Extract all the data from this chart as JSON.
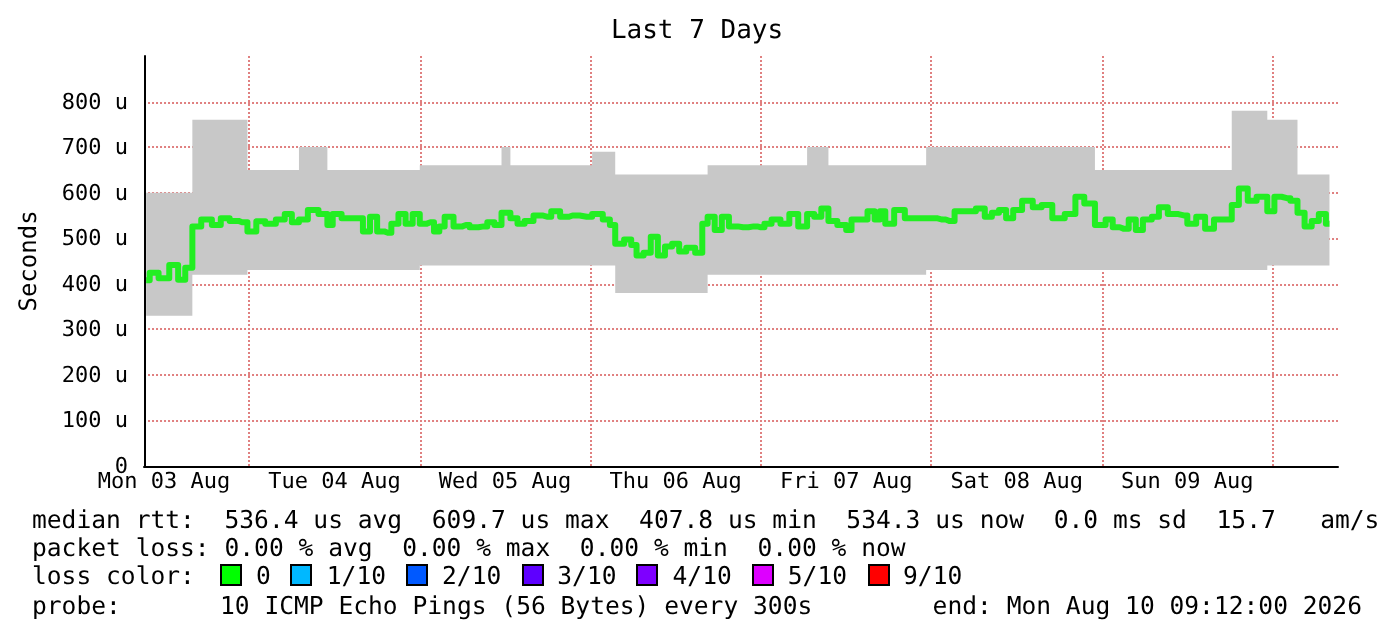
{
  "chart_data": {
    "type": "step",
    "title": "Last 7 Days",
    "ylabel": "Seconds",
    "xlim": [
      "2026-08-03T09:12",
      "2026-08-10T09:12"
    ],
    "xticks": [
      {
        "value": "2026-08-03T12:00",
        "label": "Mon 03 Aug"
      },
      {
        "value": "2026-08-04T00:00",
        "label": null
      },
      {
        "value": "2026-08-04T12:00",
        "label": "Tue 04 Aug"
      },
      {
        "value": "2026-08-05T00:00",
        "label": null
      },
      {
        "value": "2026-08-05T12:00",
        "label": "Wed 05 Aug"
      },
      {
        "value": "2026-08-06T00:00",
        "label": null
      },
      {
        "value": "2026-08-06T12:00",
        "label": "Thu 06 Aug"
      },
      {
        "value": "2026-08-07T00:00",
        "label": null
      },
      {
        "value": "2026-08-07T12:00",
        "label": "Fri 07 Aug"
      },
      {
        "value": "2026-08-08T00:00",
        "label": null
      },
      {
        "value": "2026-08-08T12:00",
        "label": "Sat 08 Aug"
      },
      {
        "value": "2026-08-09T00:00",
        "label": null
      },
      {
        "value": "2026-08-09T12:00",
        "label": "Sun 09 Aug"
      },
      {
        "value": "2026-08-10T00:00",
        "label": null
      }
    ],
    "ylim": [
      0,
      900
    ],
    "yticks": [
      0,
      {
        "value": 100,
        "label": "100 u"
      },
      {
        "value": 200,
        "label": "200 u"
      },
      {
        "value": 300,
        "label": "300 u"
      },
      {
        "value": 400,
        "label": "400 u"
      },
      {
        "value": 500,
        "label": "500 u"
      },
      {
        "value": 600,
        "label": "600 u"
      },
      {
        "value": 700,
        "label": "700 u"
      },
      {
        "value": 800,
        "label": "800 u"
      }
    ],
    "grid": true,
    "x": [
      "2026-08-03T09:30",
      "2026-08-03T10:30",
      "2026-08-03T12:00",
      "2026-08-03T13:30",
      "2026-08-03T14:30",
      "2026-08-03T15:30",
      "2026-08-03T16:30",
      "2026-08-03T18:00",
      "2026-08-03T19:30",
      "2026-08-03T20:30",
      "2026-08-03T22:00",
      "2026-08-03T23:00",
      "2026-08-04T00:30",
      "2026-08-04T01:30",
      "2026-08-04T03:00",
      "2026-08-04T04:30",
      "2026-08-04T05:30",
      "2026-08-04T06:30",
      "2026-08-04T07:30",
      "2026-08-04T09:00",
      "2026-08-04T10:30",
      "2026-08-04T11:30",
      "2026-08-04T12:00",
      "2026-08-04T14:00",
      "2026-08-04T15:30",
      "2026-08-04T16:30",
      "2026-08-04T17:30",
      "2026-08-04T18:30",
      "2026-08-04T19:30",
      "2026-08-04T20:30",
      "2026-08-04T21:30",
      "2026-08-04T22:30",
      "2026-08-04T23:30",
      "2026-08-05T00:30",
      "2026-08-05T01:30",
      "2026-08-05T02:30",
      "2026-08-05T03:00",
      "2026-08-05T04:00",
      "2026-08-05T05:30",
      "2026-08-05T06:30",
      "2026-08-05T07:30",
      "2026-08-05T09:00",
      "2026-08-05T10:00",
      "2026-08-05T11:00",
      "2026-08-05T12:00",
      "2026-08-05T13:30",
      "2026-08-05T14:00",
      "2026-08-05T15:30",
      "2026-08-05T16:30",
      "2026-08-05T18:00",
      "2026-08-05T19:00",
      "2026-08-05T20:30",
      "2026-08-05T21:30",
      "2026-08-05T23:30",
      "2026-08-06T01:00",
      "2026-08-06T02:30",
      "2026-08-06T03:00",
      "2026-08-06T04:00",
      "2026-08-06T05:30",
      "2026-08-06T06:00",
      "2026-08-06T07:00",
      "2026-08-06T08:00",
      "2026-08-06T09:00",
      "2026-08-06T10:00",
      "2026-08-06T11:00",
      "2026-08-06T12:00",
      "2026-08-06T13:00",
      "2026-08-06T14:00",
      "2026-08-06T15:30",
      "2026-08-06T16:00",
      "2026-08-06T17:00",
      "2026-08-06T18:00",
      "2026-08-06T19:00",
      "2026-08-06T20:00",
      "2026-08-06T21:30",
      "2026-08-06T23:00",
      "2026-08-07T00:00",
      "2026-08-07T01:00",
      "2026-08-07T02:00",
      "2026-08-07T03:30",
      "2026-08-07T04:30",
      "2026-08-07T06:00",
      "2026-08-07T07:00",
      "2026-08-07T08:00",
      "2026-08-07T09:00",
      "2026-08-07T10:00",
      "2026-08-07T11:30",
      "2026-08-07T12:30",
      "2026-08-07T13:00",
      "2026-08-07T14:30",
      "2026-08-07T15:30",
      "2026-08-07T16:30",
      "2026-08-07T17:00",
      "2026-08-07T18:00",
      "2026-08-07T19:30",
      "2026-08-07T21:00",
      "2026-08-07T22:30",
      "2026-08-08T00:00",
      "2026-08-08T01:30",
      "2026-08-08T02:30",
      "2026-08-08T04:00",
      "2026-08-08T05:30",
      "2026-08-08T07:00",
      "2026-08-08T08:00",
      "2026-08-08T09:00",
      "2026-08-08T10:00",
      "2026-08-08T11:00",
      "2026-08-08T12:00",
      "2026-08-08T13:30",
      "2026-08-08T15:00",
      "2026-08-08T16:00",
      "2026-08-08T18:00",
      "2026-08-08T19:30",
      "2026-08-08T21:00",
      "2026-08-08T22:00",
      "2026-08-09T00:00",
      "2026-08-09T01:00",
      "2026-08-09T02:00",
      "2026-08-09T03:00",
      "2026-08-09T04:30",
      "2026-08-09T05:00",
      "2026-08-09T06:30",
      "2026-08-09T07:30",
      "2026-08-09T08:30",
      "2026-08-09T10:00",
      "2026-08-09T11:30",
      "2026-08-09T12:30",
      "2026-08-09T14:00",
      "2026-08-09T15:00",
      "2026-08-09T16:30",
      "2026-08-09T18:00",
      "2026-08-09T18:30",
      "2026-08-09T20:00",
      "2026-08-09T21:00",
      "2026-08-09T22:30",
      "2026-08-10T00:00",
      "2026-08-10T00:30",
      "2026-08-10T02:00",
      "2026-08-10T03:00",
      "2026-08-10T04:00",
      "2026-08-10T05:00",
      "2026-08-10T06:00",
      "2026-08-10T07:00",
      "2026-08-10T08:00"
    ],
    "series": [
      {
        "color": "#22ee22",
        "values": [
          408,
          424,
          412,
          441,
          409,
          435,
          526,
          541,
          529,
          544,
          538,
          535,
          515,
          537,
          532,
          541,
          553,
          535,
          541,
          562,
          553,
          529,
          553,
          544,
          544,
          515,
          547,
          515,
          512,
          532,
          553,
          532,
          553,
          532,
          535,
          515,
          526,
          547,
          526,
          529,
          524,
          526,
          535,
          529,
          556,
          544,
          532,
          538,
          550,
          547,
          559,
          547,
          550,
          547,
          553,
          541,
          529,
          488,
          497,
          485,
          462,
          468,
          503,
          462,
          482,
          488,
          471,
          479,
          468,
          532,
          547,
          518,
          547,
          526,
          524,
          526,
          524,
          532,
          541,
          532,
          553,
          526,
          553,
          547,
          565,
          538,
          529,
          518,
          541,
          541,
          559,
          541,
          559,
          532,
          562,
          544,
          544,
          544,
          541,
          538,
          559,
          559,
          565,
          547,
          556,
          562,
          544,
          562,
          582,
          568,
          573,
          544,
          553,
          591,
          576,
          529,
          541,
          524,
          521,
          541,
          518,
          541,
          547,
          568,
          553,
          550,
          532,
          547,
          521,
          541,
          541,
          573,
          609,
          582,
          591,
          559,
          591,
          588,
          582,
          556,
          526,
          538,
          553,
          532
        ],
        "lower": [
          330,
          330,
          330,
          330,
          330,
          330,
          420,
          420,
          420,
          420,
          420,
          420,
          430,
          430,
          430,
          430,
          430,
          430,
          430,
          430,
          430,
          430,
          430,
          430,
          430,
          430,
          430,
          430,
          430,
          430,
          430,
          430,
          430,
          440,
          440,
          440,
          440,
          440,
          440,
          440,
          440,
          440,
          440,
          440,
          440,
          440,
          440,
          440,
          440,
          440,
          440,
          440,
          440,
          440,
          440,
          440,
          440,
          380,
          380,
          380,
          380,
          380,
          380,
          380,
          380,
          380,
          380,
          380,
          380,
          380,
          420,
          420,
          420,
          420,
          420,
          420,
          420,
          420,
          420,
          420,
          420,
          420,
          420,
          420,
          420,
          420,
          420,
          420,
          420,
          420,
          420,
          420,
          420,
          420,
          420,
          420,
          420,
          430,
          430,
          430,
          430,
          430,
          430,
          430,
          430,
          430,
          430,
          430,
          430,
          430,
          430,
          430,
          430,
          430,
          430,
          430,
          430,
          430,
          430,
          430,
          430,
          430,
          430,
          430,
          430,
          430,
          430,
          430,
          430,
          430,
          430,
          430,
          430,
          430,
          430,
          440,
          440,
          440,
          440,
          440,
          440,
          440,
          440,
          440
        ],
        "upper": [
          600,
          600,
          600,
          600,
          600,
          600,
          760,
          760,
          760,
          760,
          760,
          760,
          650,
          650,
          650,
          650,
          650,
          650,
          700,
          700,
          700,
          650,
          650,
          650,
          650,
          650,
          650,
          650,
          650,
          650,
          650,
          650,
          650,
          660,
          660,
          660,
          660,
          660,
          660,
          660,
          660,
          660,
          660,
          660,
          700,
          660,
          660,
          660,
          660,
          660,
          660,
          660,
          660,
          660,
          690,
          690,
          690,
          640,
          640,
          640,
          640,
          640,
          640,
          640,
          640,
          640,
          640,
          640,
          640,
          640,
          660,
          660,
          660,
          660,
          660,
          660,
          660,
          660,
          660,
          660,
          660,
          660,
          700,
          700,
          700,
          660,
          660,
          660,
          660,
          660,
          660,
          660,
          660,
          660,
          660,
          660,
          660,
          700,
          700,
          700,
          700,
          700,
          700,
          700,
          700,
          700,
          700,
          700,
          700,
          700,
          700,
          700,
          700,
          700,
          700,
          650,
          650,
          650,
          650,
          650,
          650,
          650,
          650,
          650,
          650,
          650,
          650,
          650,
          650,
          650,
          650,
          780,
          780,
          780,
          780,
          760,
          760,
          760,
          760,
          640,
          640,
          640,
          640,
          640
        ]
      }
    ],
    "annotations": [
      "median rtt:  536.4 us avg  609.7 us max  407.8 us min  534.3 us now  0.0 ms sd  15.7   am/s",
      "packet loss: 0.00 % avg  0.00 % max  0.00 % min  0.00 % now",
      "loss color:",
      "0",
      "1/10",
      "2/10",
      "3/10",
      "4/10",
      "5/10",
      "9/10",
      "probe:",
      "10 ICMP Echo Pings (56 Bytes) every 300s",
      "end: Mon Aug 10 09:12:00 2026"
    ]
  }
}
